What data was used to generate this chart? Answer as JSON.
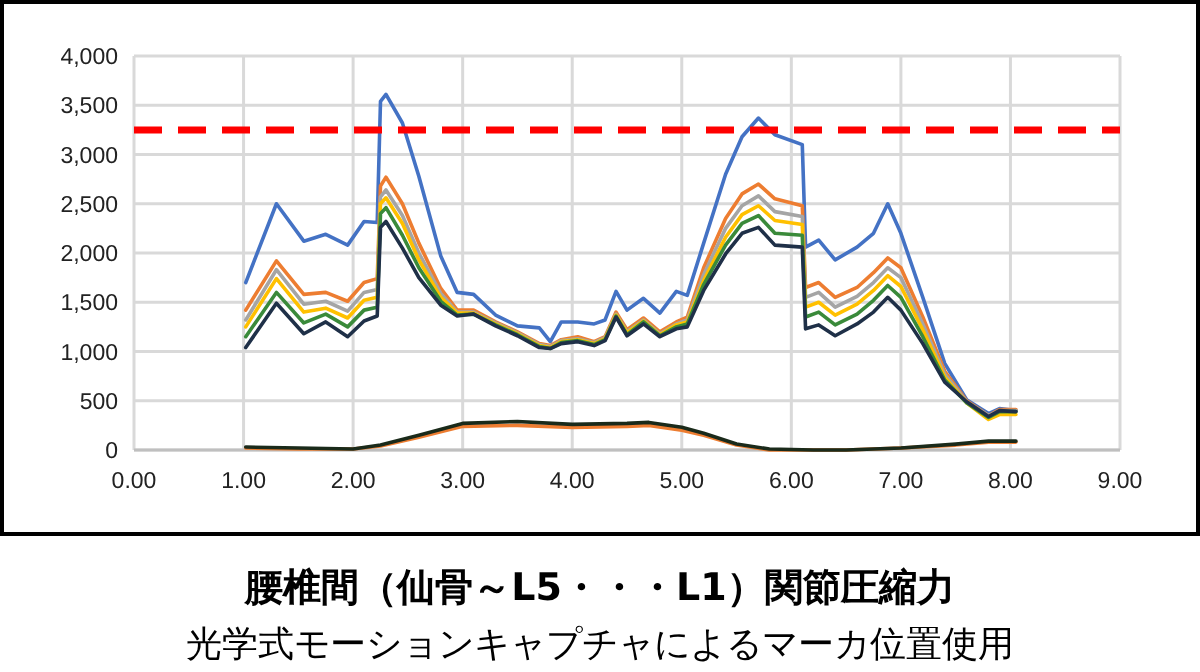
{
  "chart_data": {
    "type": "line",
    "title": "腰椎間（仙骨～L5・・・L1）関節圧縮力",
    "subtitle": "光学式モーションキャプチャによるマーカ位置使用",
    "x": [
      1.02,
      1.3,
      1.55,
      1.75,
      1.95,
      2.1,
      2.22,
      2.25,
      2.3,
      2.45,
      2.6,
      2.8,
      2.95,
      3.1,
      3.3,
      3.5,
      3.7,
      3.8,
      3.9,
      4.05,
      4.2,
      4.3,
      4.4,
      4.5,
      4.65,
      4.8,
      4.95,
      5.05,
      5.2,
      5.4,
      5.55,
      5.7,
      5.85,
      6.1,
      6.13,
      6.25,
      6.4,
      6.6,
      6.75,
      6.88,
      7.0,
      7.2,
      7.4,
      7.6,
      7.8,
      7.9,
      8.05
    ],
    "series": [
      {
        "color": "#4472c4",
        "values": [
          1700,
          2500,
          2120,
          2190,
          2080,
          2320,
          2310,
          3540,
          3610,
          3320,
          2780,
          1970,
          1600,
          1580,
          1370,
          1260,
          1240,
          1100,
          1300,
          1300,
          1280,
          1320,
          1610,
          1420,
          1540,
          1390,
          1610,
          1570,
          2100,
          2800,
          3180,
          3370,
          3200,
          3100,
          2060,
          2130,
          1930,
          2060,
          2200,
          2500,
          2200,
          1550,
          880,
          510,
          370,
          420,
          400
        ]
      },
      {
        "color": "#ed7d31",
        "values": [
          1420,
          1920,
          1580,
          1600,
          1510,
          1700,
          1740,
          2680,
          2770,
          2500,
          2100,
          1640,
          1420,
          1420,
          1300,
          1200,
          1080,
          1060,
          1120,
          1150,
          1100,
          1150,
          1400,
          1220,
          1340,
          1200,
          1300,
          1350,
          1850,
          2350,
          2600,
          2700,
          2550,
          2480,
          1650,
          1700,
          1550,
          1650,
          1800,
          1950,
          1850,
          1350,
          800,
          500,
          350,
          410,
          410
        ]
      },
      {
        "color": "#a5a5a5",
        "values": [
          1320,
          1830,
          1480,
          1510,
          1410,
          1600,
          1630,
          2570,
          2640,
          2380,
          2000,
          1590,
          1400,
          1400,
          1290,
          1190,
          1070,
          1050,
          1110,
          1130,
          1090,
          1140,
          1380,
          1200,
          1320,
          1180,
          1280,
          1320,
          1780,
          2250,
          2480,
          2580,
          2420,
          2370,
          1550,
          1600,
          1450,
          1560,
          1700,
          1850,
          1750,
          1280,
          770,
          490,
          350,
          400,
          400
        ]
      },
      {
        "color": "#ffc000",
        "values": [
          1250,
          1740,
          1400,
          1440,
          1340,
          1520,
          1550,
          2500,
          2560,
          2300,
          1930,
          1550,
          1390,
          1390,
          1280,
          1180,
          1060,
          1040,
          1100,
          1120,
          1080,
          1130,
          1370,
          1190,
          1310,
          1170,
          1270,
          1300,
          1720,
          2160,
          2390,
          2480,
          2330,
          2290,
          1450,
          1500,
          1370,
          1480,
          1620,
          1770,
          1660,
          1220,
          740,
          480,
          310,
          360,
          360
        ]
      },
      {
        "color": "#3a8a3a",
        "values": [
          1150,
          1600,
          1290,
          1380,
          1250,
          1420,
          1450,
          2400,
          2460,
          2180,
          1850,
          1510,
          1370,
          1380,
          1270,
          1170,
          1050,
          1030,
          1090,
          1110,
          1070,
          1120,
          1360,
          1170,
          1300,
          1160,
          1250,
          1280,
          1680,
          2080,
          2300,
          2380,
          2200,
          2180,
          1350,
          1400,
          1270,
          1380,
          1520,
          1670,
          1550,
          1150,
          710,
          480,
          330,
          390,
          390
        ]
      },
      {
        "color": "#1f3048",
        "values": [
          1040,
          1490,
          1180,
          1300,
          1150,
          1310,
          1360,
          2260,
          2320,
          2050,
          1750,
          1470,
          1360,
          1380,
          1260,
          1160,
          1040,
          1030,
          1080,
          1100,
          1060,
          1110,
          1350,
          1160,
          1280,
          1150,
          1230,
          1250,
          1620,
          1990,
          2200,
          2260,
          2080,
          2060,
          1230,
          1270,
          1160,
          1280,
          1400,
          1550,
          1420,
          1080,
          690,
          490,
          340,
          400,
          390
        ]
      },
      {
        "color": "#ed7d31",
        "x": [
          1.02,
          1.5,
          2.0,
          2.25,
          2.6,
          3.0,
          3.5,
          4.0,
          4.5,
          4.7,
          5.0,
          5.2,
          5.5,
          5.8,
          6.2,
          6.5,
          7.0,
          7.5,
          7.8,
          8.05
        ],
        "values": [
          20,
          10,
          10,
          40,
          130,
          240,
          250,
          230,
          240,
          250,
          200,
          150,
          50,
          0,
          0,
          0,
          20,
          50,
          80,
          80
        ]
      },
      {
        "color": "#1a2a1a",
        "x": [
          1.02,
          1.5,
          2.0,
          2.25,
          2.6,
          3.0,
          3.5,
          4.0,
          4.5,
          4.7,
          5.0,
          5.2,
          5.5,
          5.8,
          6.2,
          6.5,
          7.0,
          7.5,
          7.8,
          8.05
        ],
        "values": [
          30,
          20,
          10,
          50,
          150,
          270,
          290,
          260,
          270,
          280,
          230,
          170,
          60,
          10,
          0,
          0,
          20,
          60,
          90,
          90
        ]
      }
    ],
    "xlim": [
      0,
      9
    ],
    "ylim": [
      0,
      4000
    ],
    "xticks": [
      {
        "value": 0,
        "label": "0.00"
      },
      {
        "value": 1,
        "label": "1.00"
      },
      {
        "value": 2,
        "label": "2.00"
      },
      {
        "value": 3,
        "label": "3.00"
      },
      {
        "value": 4,
        "label": "4.00"
      },
      {
        "value": 5,
        "label": "5.00"
      },
      {
        "value": 6,
        "label": "6.00"
      },
      {
        "value": 7,
        "label": "7.00"
      },
      {
        "value": 8,
        "label": "8.00"
      },
      {
        "value": 9,
        "label": "9.00"
      }
    ],
    "yticks": [
      0,
      500,
      {
        "value": 1000,
        "label": "1,000"
      },
      {
        "value": 1500,
        "label": "1,500"
      },
      {
        "value": 2000,
        "label": "2,000"
      },
      {
        "value": 2500,
        "label": "2,500"
      },
      {
        "value": 3000,
        "label": "3,000"
      },
      {
        "value": 3500,
        "label": "3,500"
      },
      {
        "value": 4000,
        "label": "4,000"
      }
    ],
    "grid": true,
    "ref_lines": [
      {
        "axis": "y",
        "value": 3250,
        "color": "#ff0000",
        "line_style": "dashed"
      }
    ]
  }
}
